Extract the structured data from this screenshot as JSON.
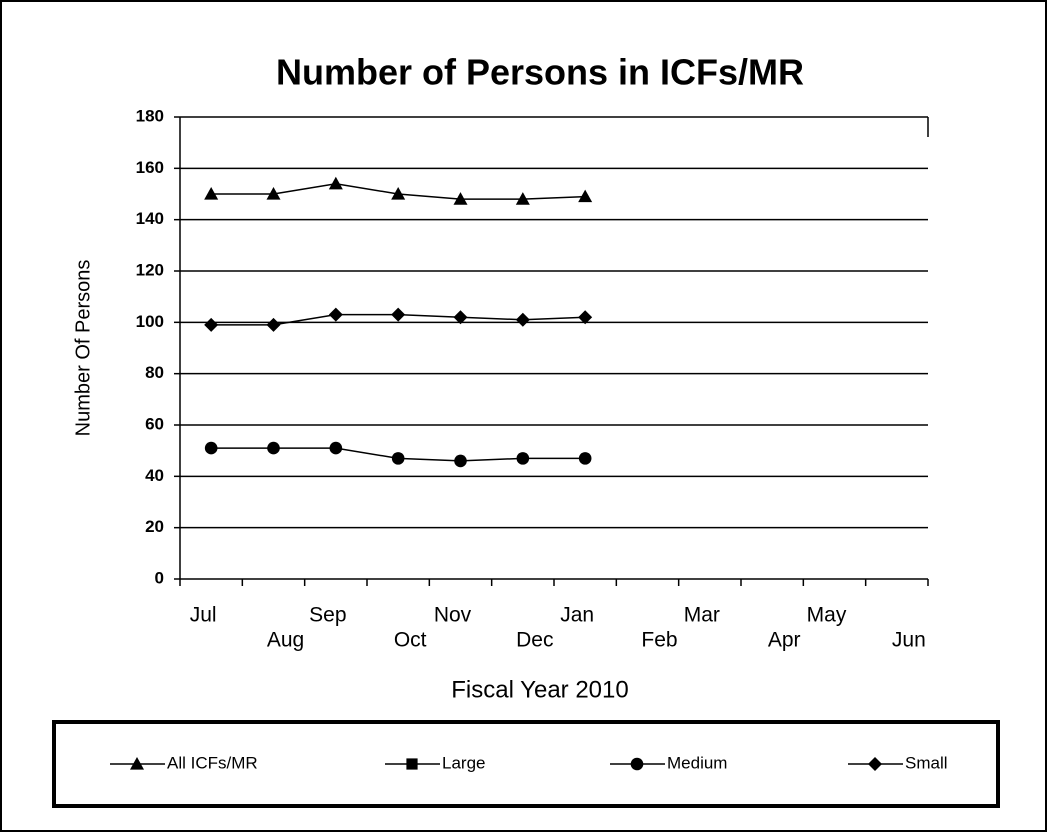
{
  "chart_data": {
    "type": "line",
    "title": "Number of Persons in ICFs/MR",
    "x_label": "Fiscal Year 2010",
    "y_label": "Number Of Persons",
    "categories": [
      "Jul",
      "Aug",
      "Sep",
      "Oct",
      "Nov",
      "Dec",
      "Jan",
      "Feb",
      "Mar",
      "Apr",
      "May",
      "Jun"
    ],
    "series": [
      {
        "name": "All ICFs/MR",
        "color": "#000000",
        "marker": "triangle",
        "values": [
          150,
          150,
          154,
          150,
          148,
          148,
          149,
          null,
          null,
          null,
          null,
          null
        ]
      },
      {
        "name": "Large",
        "color": "#000000",
        "marker": "square",
        "values": [
          null,
          null,
          null,
          null,
          null,
          null,
          null,
          null,
          null,
          null,
          null,
          null
        ]
      },
      {
        "name": "Medium",
        "color": "#000000",
        "marker": "circle",
        "values": [
          51,
          51,
          51,
          47,
          46,
          47,
          47,
          null,
          null,
          null,
          null,
          null
        ]
      },
      {
        "name": "Small",
        "color": "#000000",
        "marker": "diamond",
        "values": [
          99,
          99,
          103,
          103,
          102,
          101,
          102,
          null,
          null,
          null,
          null,
          null
        ]
      }
    ],
    "ylim": [
      0,
      180
    ],
    "yticks": [
      0,
      20,
      40,
      60,
      80,
      100,
      120,
      140,
      160,
      180
    ],
    "grid": true,
    "legend": "bottom"
  }
}
